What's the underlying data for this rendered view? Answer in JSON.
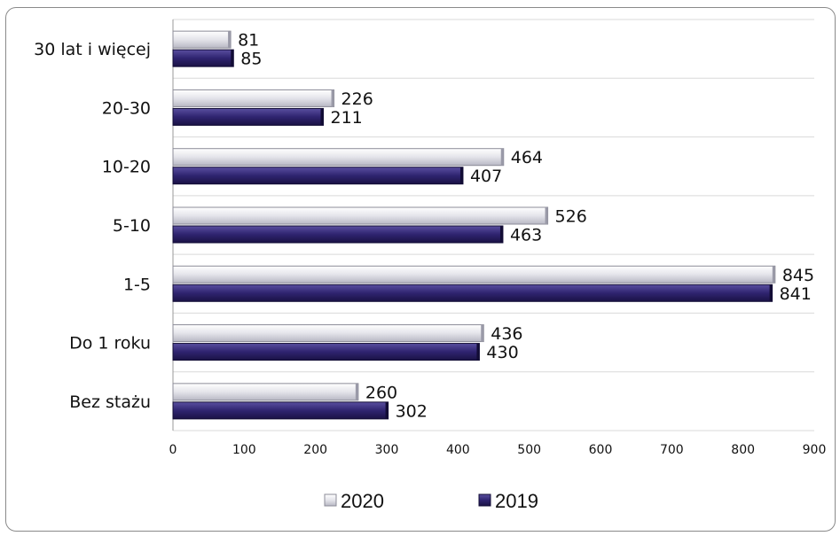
{
  "chart_data": {
    "type": "bar",
    "orientation": "horizontal",
    "categories": [
      "Bez stażu",
      "Do 1 roku",
      "1-5",
      "5-10",
      "10-20",
      "20-30",
      "30 lat i więcej"
    ],
    "series": [
      {
        "name": "2020",
        "values": [
          260,
          436,
          845,
          526,
          464,
          226,
          81
        ],
        "color": "#dcdcdc"
      },
      {
        "name": "2019",
        "values": [
          302,
          430,
          841,
          463,
          407,
          211,
          85
        ],
        "color": "#2f2470"
      }
    ],
    "xlim": [
      0,
      900
    ],
    "xticks": [
      0,
      100,
      200,
      300,
      400,
      500,
      600,
      700,
      800,
      900
    ],
    "grid": true,
    "legend_position": "bottom",
    "data_labels": true
  }
}
